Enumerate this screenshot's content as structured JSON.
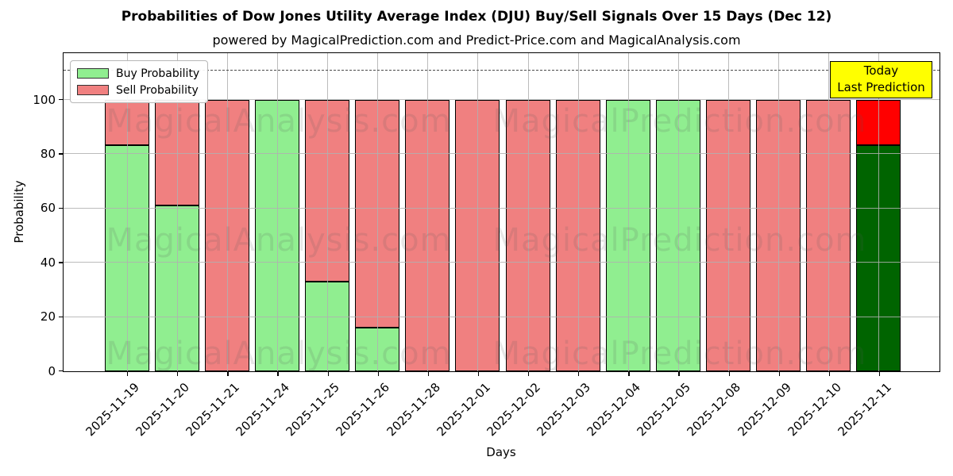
{
  "title": "Probabilities of Dow Jones Utility Average Index (DJU) Buy/Sell Signals Over 15 Days (Dec 12)",
  "subtitle": "powered by MagicalPrediction.com and Predict-Price.com and MagicalAnalysis.com",
  "axes": {
    "x_label": "Days",
    "y_label": "Probability"
  },
  "legend": {
    "items": [
      {
        "label": "Buy Probability",
        "color": "#90EE90"
      },
      {
        "label": "Sell Probability",
        "color": "#F08080"
      }
    ]
  },
  "annotation_box": {
    "line1": "Today",
    "line2": "Last Prediction",
    "bg_color": "#FFFF00"
  },
  "watermark": {
    "left_text": "MagicalAnalysis.com",
    "right_text": "MagicalPrediction.com"
  },
  "colors": {
    "buy": "#90EE90",
    "sell": "#F08080",
    "today_buy": "#006400",
    "today_sell": "#FF0000",
    "grid": "#B0B0B0",
    "annotation_bg": "#FFFF00",
    "bar_edge": "#000000"
  },
  "chart_data": {
    "type": "bar",
    "stacked": true,
    "title": "Probabilities of Dow Jones Utility Average Index (DJU) Buy/Sell Signals Over 15 Days (Dec 12)",
    "xlabel": "Days",
    "ylabel": "Probability",
    "ylim": [
      0,
      117
    ],
    "y_ticks": [
      0,
      20,
      40,
      60,
      80,
      100
    ],
    "grid": true,
    "legend_position": "upper left",
    "dashed_hline_y": 111,
    "categories": [
      "2025-11-19",
      "2025-11-20",
      "2025-11-21",
      "2025-11-24",
      "2025-11-25",
      "2025-11-26",
      "2025-11-28",
      "2025-12-01",
      "2025-12-02",
      "2025-12-03",
      "2025-12-04",
      "2025-12-05",
      "2025-12-08",
      "2025-12-09",
      "2025-12-10",
      "2025-12-11"
    ],
    "series": [
      {
        "name": "Buy Probability",
        "color": "#90EE90",
        "values": [
          83.5,
          61,
          0,
          100,
          33,
          16,
          0,
          0,
          0,
          0,
          100,
          100,
          0,
          0,
          0,
          83.5
        ]
      },
      {
        "name": "Sell Probability",
        "color": "#F08080",
        "values": [
          16.5,
          39,
          100,
          0,
          67,
          84,
          100,
          100,
          100,
          100,
          0,
          0,
          100,
          100,
          100,
          16.5
        ]
      }
    ],
    "today": {
      "index": 15,
      "buy_color": "#006400",
      "sell_color": "#FF0000"
    }
  }
}
